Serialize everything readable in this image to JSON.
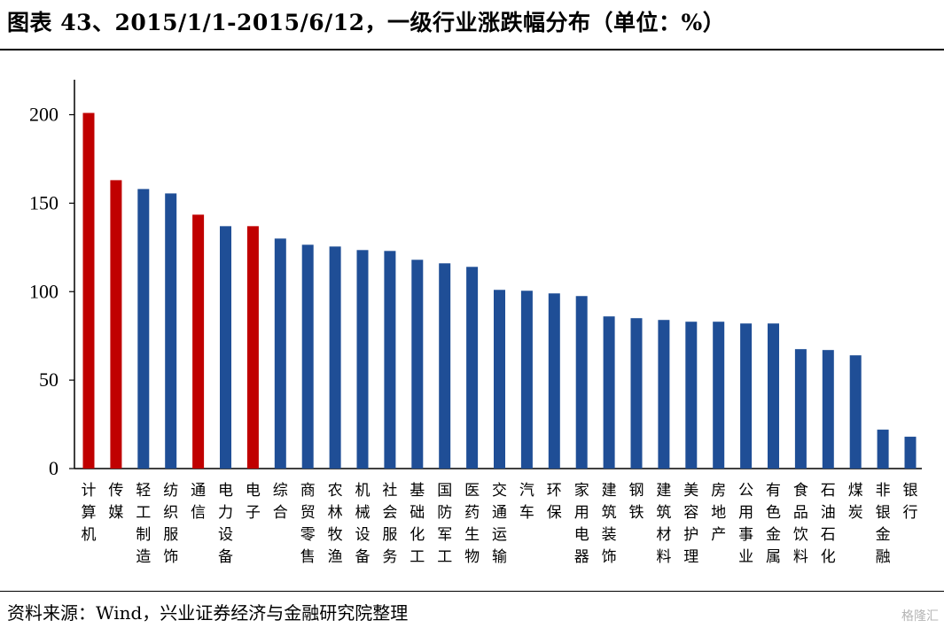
{
  "header": {
    "title": "图表 43、2015/1/1-2015/6/12，一级行业涨跌幅分布（单位：%）"
  },
  "footer": {
    "source": "资料来源：Wind，兴业证券经济与金融研究院整理",
    "watermark": "格隆汇"
  },
  "colors": {
    "highlight": "#C00000",
    "default": "#1F4E96"
  },
  "chart_data": {
    "type": "bar",
    "title": "",
    "xlabel": "",
    "ylabel": "",
    "ylim": [
      0,
      220
    ],
    "yticks": [
      0,
      50,
      100,
      150,
      200
    ],
    "grid": false,
    "legend": "none",
    "categories": [
      "计算机",
      "传媒",
      "轻工制造",
      "纺织服饰",
      "通信",
      "电力设备",
      "电子",
      "综合",
      "商贸零售",
      "农林牧渔",
      "机械设备",
      "社会服务",
      "基础化工",
      "国防军工",
      "医药生物",
      "交通运输",
      "汽车",
      "环保",
      "家用电器",
      "建筑装饰",
      "钢铁",
      "建筑材料",
      "美容护理",
      "房地产",
      "公用事业",
      "有色金属",
      "食品饮料",
      "石油石化",
      "煤炭",
      "非银金融",
      "银行"
    ],
    "values": [
      201,
      163,
      158,
      155.5,
      143.5,
      137,
      137,
      130,
      126.5,
      125.5,
      123.5,
      123,
      118,
      116,
      114,
      101,
      100.5,
      99,
      97.5,
      86,
      85,
      84,
      83,
      83,
      82,
      82,
      67.5,
      67,
      64,
      22,
      18
    ],
    "highlighted": [
      "计算机",
      "传媒",
      "通信",
      "电子"
    ]
  }
}
